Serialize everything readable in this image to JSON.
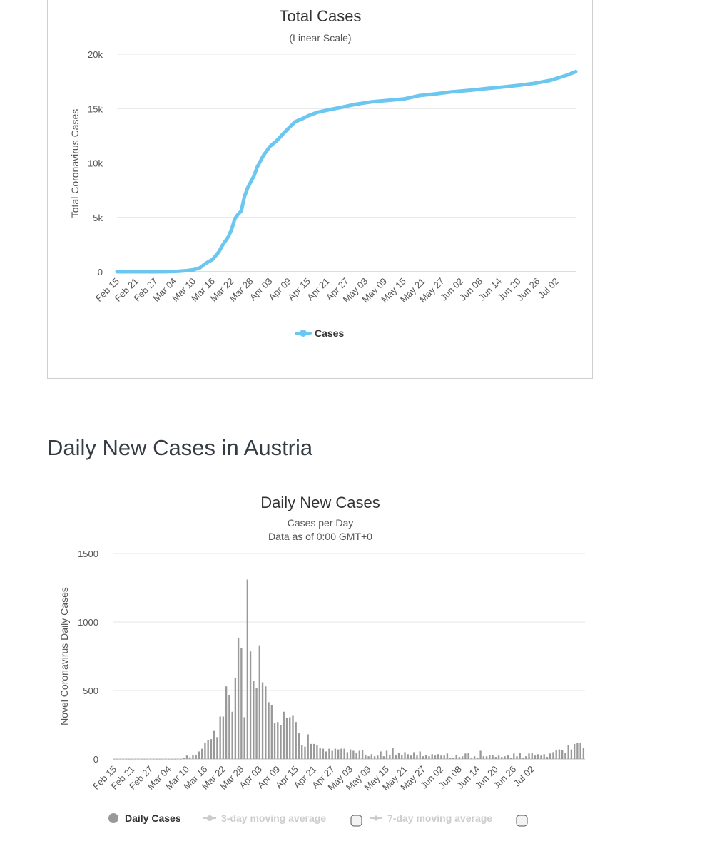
{
  "heading": "Daily New Cases in Austria",
  "chart_data": [
    {
      "type": "line",
      "title": "Total Cases",
      "subtitle": "(Linear Scale)",
      "xlabel": "",
      "ylabel": "Total Coronavirus Cases",
      "ylim": [
        0,
        20000
      ],
      "ytick_values": [
        0,
        5000,
        10000,
        15000,
        20000
      ],
      "ytick_labels": [
        "0",
        "5k",
        "10k",
        "15k",
        "20k"
      ],
      "start_date": "2020-02-15",
      "xtick_labels": [
        "Feb 15",
        "Feb 21",
        "Feb 27",
        "Mar 04",
        "Mar 10",
        "Mar 16",
        "Mar 22",
        "Mar 28",
        "Apr 03",
        "Apr 09",
        "Apr 15",
        "Apr 21",
        "Apr 27",
        "May 03",
        "May 09",
        "May 15",
        "May 21",
        "May 27",
        "Jun 02",
        "Jun 08",
        "Jun 14",
        "Jun 20",
        "Jun 26",
        "Jul 02"
      ],
      "grid": true,
      "legend_position": "bottom-center",
      "series": [
        {
          "name": "Cases",
          "color": "#6bc7f0",
          "points": [
            [
              "2020-02-15",
              0
            ],
            [
              "2020-02-25",
              2
            ],
            [
              "2020-03-01",
              10
            ],
            [
              "2020-03-05",
              41
            ],
            [
              "2020-03-08",
              104
            ],
            [
              "2020-03-10",
              182
            ],
            [
              "2020-03-12",
              361
            ],
            [
              "2020-03-14",
              800
            ],
            [
              "2020-03-16",
              1132
            ],
            [
              "2020-03-18",
              1843
            ],
            [
              "2020-03-19",
              2388
            ],
            [
              "2020-03-20",
              2814
            ],
            [
              "2020-03-21",
              3244
            ],
            [
              "2020-03-22",
              3924
            ],
            [
              "2020-03-23",
              4876
            ],
            [
              "2020-03-24",
              5282
            ],
            [
              "2020-03-25",
              5588
            ],
            [
              "2020-03-26",
              6909
            ],
            [
              "2020-03-27",
              7697
            ],
            [
              "2020-03-28",
              8271
            ],
            [
              "2020-03-29",
              8813
            ],
            [
              "2020-03-30",
              9618
            ],
            [
              "2020-04-01",
              10711
            ],
            [
              "2020-04-03",
              11525
            ],
            [
              "2020-04-05",
              12008
            ],
            [
              "2020-04-07",
              12640
            ],
            [
              "2020-04-09",
              13244
            ],
            [
              "2020-04-11",
              13806
            ],
            [
              "2020-04-13",
              14041
            ],
            [
              "2020-04-15",
              14336
            ],
            [
              "2020-04-18",
              14671
            ],
            [
              "2020-04-22",
              14925
            ],
            [
              "2020-04-26",
              15148
            ],
            [
              "2020-04-30",
              15402
            ],
            [
              "2020-05-05",
              15621
            ],
            [
              "2020-05-10",
              15752
            ],
            [
              "2020-05-15",
              15882
            ],
            [
              "2020-05-20",
              16201
            ],
            [
              "2020-05-25",
              16353
            ],
            [
              "2020-05-30",
              16539
            ],
            [
              "2020-06-05",
              16685
            ],
            [
              "2020-06-10",
              16843
            ],
            [
              "2020-06-15",
              16979
            ],
            [
              "2020-06-20",
              17135
            ],
            [
              "2020-06-25",
              17323
            ],
            [
              "2020-06-30",
              17589
            ],
            [
              "2020-07-05",
              18047
            ],
            [
              "2020-07-08",
              18400
            ]
          ]
        }
      ]
    },
    {
      "type": "bar",
      "title": "Daily New Cases",
      "subtitle": "Cases per Day",
      "subtitle2": "Data as of 0:00 GMT+0",
      "xlabel": "",
      "ylabel": "Novel Coronavirus Daily Cases",
      "ylim": [
        0,
        1500
      ],
      "ytick_values": [
        0,
        500,
        1000,
        1500
      ],
      "ytick_labels": [
        "0",
        "500",
        "1000",
        "1500"
      ],
      "start_date": "2020-02-15",
      "xtick_labels": [
        "Feb 15",
        "Feb 21",
        "Feb 27",
        "Mar 04",
        "Mar 10",
        "Mar 16",
        "Mar 22",
        "Mar 28",
        "Apr 03",
        "Apr 09",
        "Apr 15",
        "Apr 21",
        "Apr 27",
        "May 03",
        "May 09",
        "May 15",
        "May 21",
        "May 27",
        "Jun 02",
        "Jun 08",
        "Jun 14",
        "Jun 20",
        "Jun 26",
        "Jul 02"
      ],
      "grid": true,
      "legend_position": "bottom-left",
      "series": [
        {
          "name": "Daily Cases",
          "color": "#999999",
          "values": [
            0,
            0,
            0,
            0,
            0,
            0,
            0,
            0,
            0,
            0,
            0,
            0,
            0,
            0,
            0,
            0,
            0,
            0,
            0,
            0,
            0,
            0,
            0,
            10,
            25,
            12,
            28,
            30,
            55,
            75,
            115,
            140,
            145,
            205,
            160,
            310,
            310,
            530,
            465,
            345,
            590,
            880,
            810,
            305,
            1310,
            785,
            570,
            520,
            830,
            560,
            530,
            415,
            395,
            260,
            270,
            245,
            345,
            300,
            305,
            315,
            270,
            190,
            100,
            90,
            180,
            110,
            110,
            100,
            80,
            75,
            55,
            75,
            60,
            75,
            70,
            75,
            75,
            50,
            70,
            60,
            45,
            60,
            65,
            30,
            20,
            35,
            20,
            25,
            55,
            20,
            60,
            30,
            80,
            30,
            45,
            30,
            50,
            35,
            25,
            50,
            25,
            55,
            20,
            30,
            20,
            35,
            25,
            35,
            25,
            25,
            40,
            5,
            10,
            30,
            15,
            20,
            40,
            45,
            5,
            20,
            10,
            60,
            20,
            20,
            30,
            30,
            15,
            25,
            15,
            20,
            30,
            10,
            40,
            20,
            45,
            5,
            20,
            40,
            45,
            25,
            35,
            25,
            35,
            15,
            40,
            50,
            65,
            70,
            65,
            45,
            100,
            70,
            110,
            115,
            115,
            80
          ]
        },
        {
          "name": "3-day moving average",
          "visible": false
        },
        {
          "name": "7-day moving average",
          "visible": false
        }
      ]
    }
  ]
}
